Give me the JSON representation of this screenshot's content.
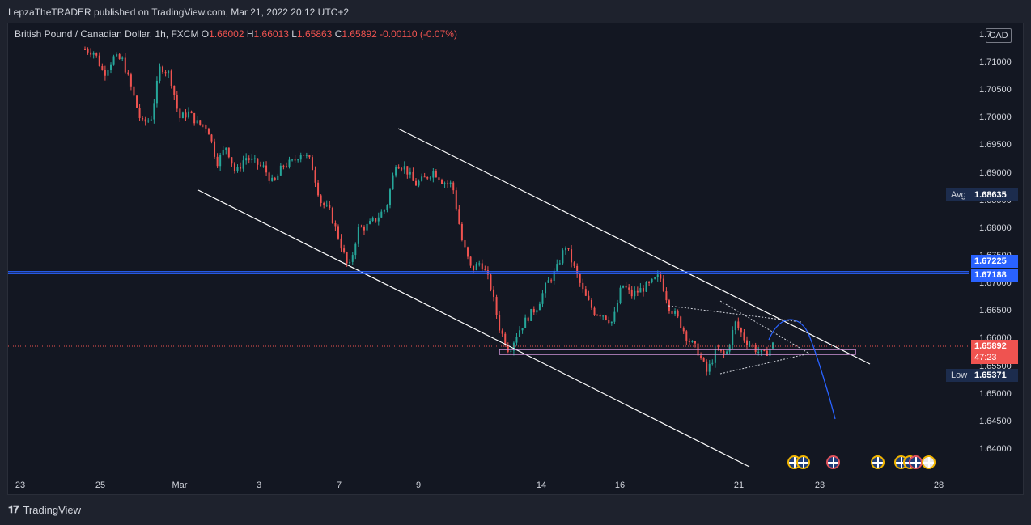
{
  "header": {
    "publisher_line": "LepzaTheTRADER published on TradingView.com, Mar 21, 2022 20:12 UTC+2"
  },
  "footer": {
    "brand": "TradingView",
    "logo": "tradingview-logo-icon"
  },
  "legend": {
    "symbol": "British Pound / Canadian Dollar, 1h, FXCM",
    "o_label": "O",
    "o": "1.66002",
    "h_label": "H",
    "h": "1.66013",
    "l_label": "L",
    "l": "1.65863",
    "c_label": "C",
    "c": "1.65892",
    "change": "-0.00110 (-0.07%)"
  },
  "colors": {
    "up": "#26a69a",
    "down": "#ef5350",
    "trend": "#ffffff",
    "level": "#2962ff",
    "box": "#ce93d8",
    "path": "#2962ff"
  },
  "chart_data": {
    "type": "candlestick",
    "currency": "CAD",
    "x_tick_labels": [
      "23",
      "25",
      "Mar",
      "3",
      "7",
      "9",
      "14",
      "16",
      "21",
      "23",
      "28"
    ],
    "y_tick_labels": [
      "1.71000",
      "1.70500",
      "1.70000",
      "1.69500",
      "1.69000",
      "1.68500",
      "1.68000",
      "1.67500",
      "1.67000",
      "1.66500",
      "1.66000",
      "1.65500",
      "1.65000",
      "1.64500",
      "1.64000"
    ],
    "ylim": [
      1.6365,
      1.7125
    ],
    "grid": false,
    "price_tags": {
      "avg_label": "Avg",
      "avg": "1.68635",
      "level_upper": "1.67225",
      "level_lower": "1.67188",
      "last": "1.65892",
      "countdown": "47:23",
      "low_label": "Low",
      "low": "1.65371"
    },
    "price_path": [
      1.7125,
      1.712,
      1.708,
      1.711,
      1.7105,
      1.705,
      1.699,
      1.7,
      1.7095,
      1.708,
      1.7,
      1.701,
      1.699,
      1.6985,
      1.692,
      1.695,
      1.69,
      1.693,
      1.692,
      1.691,
      1.688,
      1.6915,
      1.692,
      1.694,
      1.692,
      1.685,
      1.683,
      1.678,
      1.6725,
      1.68,
      1.6805,
      1.682,
      1.684,
      1.692,
      1.691,
      1.688,
      1.689,
      1.6905,
      1.6885,
      1.688,
      1.678,
      1.6725,
      1.674,
      1.67,
      1.662,
      1.658,
      1.6615,
      1.664,
      1.666,
      1.67,
      1.6725,
      1.677,
      1.6725,
      1.668,
      1.665,
      1.6645,
      1.663,
      1.67,
      1.668,
      1.669,
      1.67,
      1.6715,
      1.666,
      1.6635,
      1.66,
      1.658,
      1.654,
      1.658,
      1.657,
      1.663,
      1.66,
      1.6585,
      1.657,
      1.659
    ],
    "drawings": {
      "channel_upper": [
        [
          492,
          159
        ],
        [
          1075,
          450
        ]
      ],
      "channel_lower": [
        [
          245,
          235
        ],
        [
          926,
          577
        ]
      ],
      "hline_upper": 1.67225,
      "hline_lower": 1.67188,
      "support_box": [
        1.6573,
        1.658
      ],
      "triangle_top": [
        [
          826,
          378
        ],
        [
          990,
          398
        ]
      ],
      "triangle_bottom": [
        [
          890,
          462
        ],
        [
          1000,
          437
        ]
      ],
      "triangle_apex": [
        [
          990,
          398
        ],
        [
          1000,
          437
        ]
      ]
    },
    "event_markers": [
      "uk-flag-icon",
      "uk-flag-icon",
      "uk-flag-icon",
      "uk-flag-icon",
      "uk-flag-icon",
      "uk-flag-icon",
      "uk-flag-icon",
      "calendar-icon"
    ]
  }
}
